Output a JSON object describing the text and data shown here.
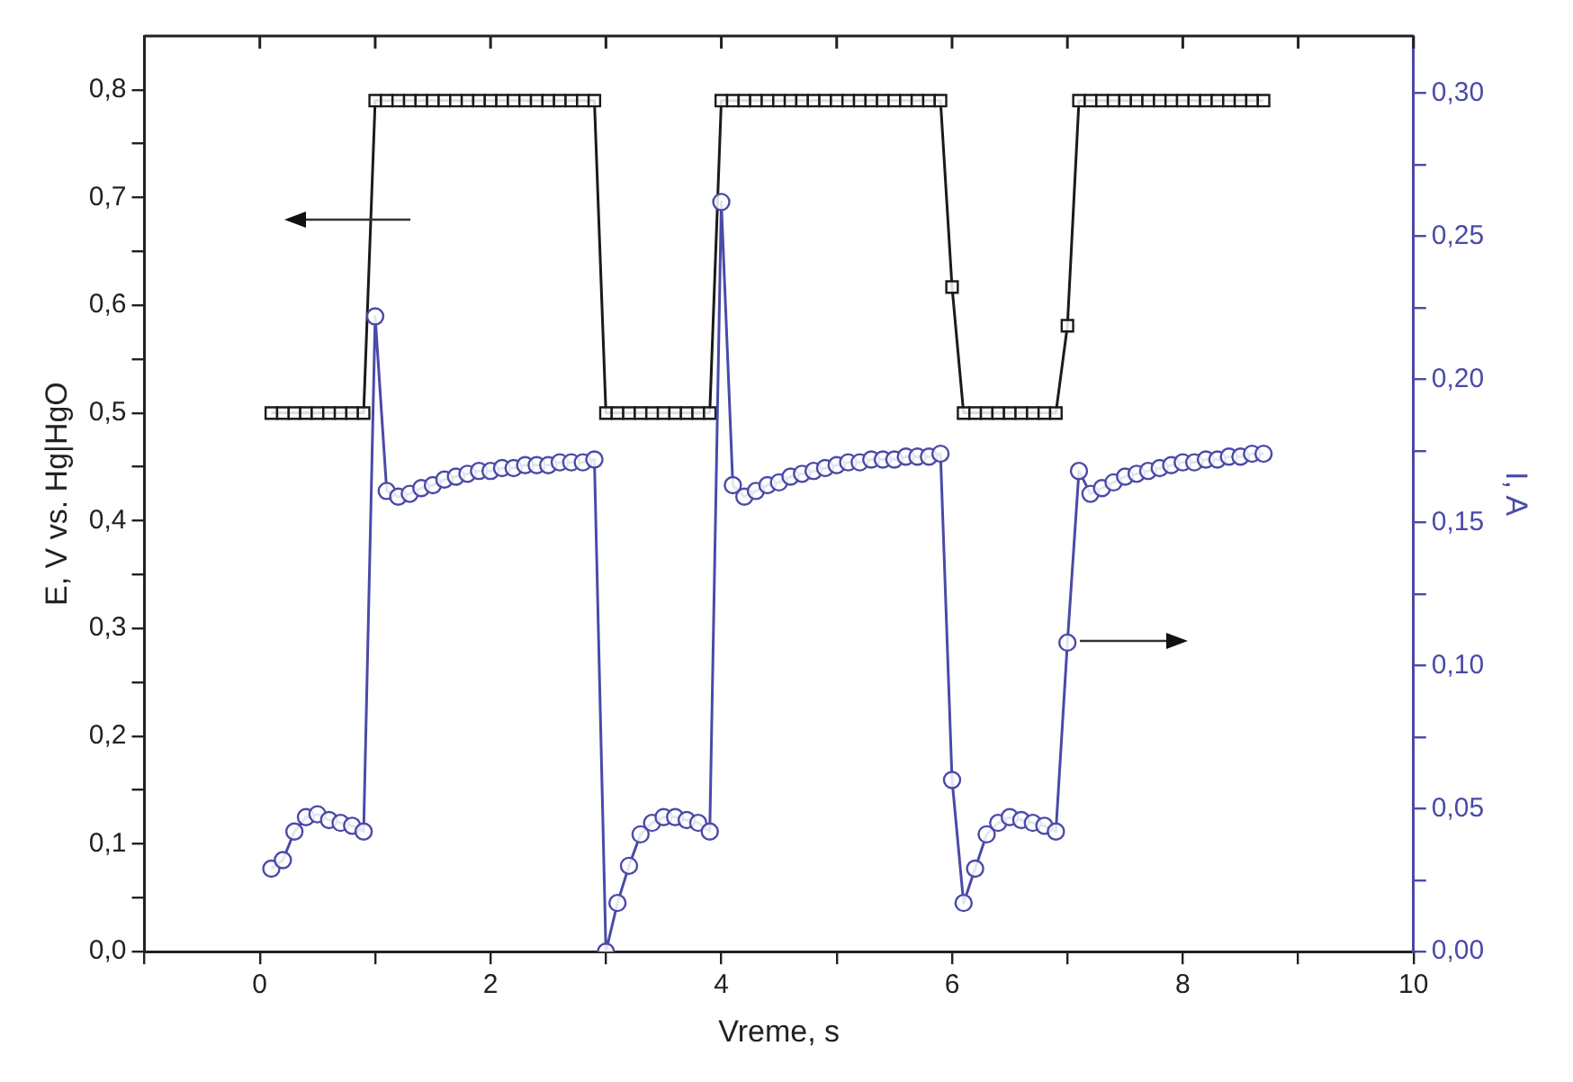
{
  "chart_data": {
    "type": "line",
    "xlabel": "Vreme, s",
    "ylabel": "E, V vs. Hg|HgO",
    "y2label": "I, A",
    "xlim": [
      -1,
      10
    ],
    "xticks": [
      {
        "value": -1,
        "label": null
      },
      0,
      {
        "value": 1,
        "label": null
      },
      2,
      {
        "value": 3,
        "label": null
      },
      4,
      {
        "value": 5,
        "label": null
      },
      6,
      {
        "value": 7,
        "label": null
      },
      8,
      {
        "value": 9,
        "label": null
      },
      10
    ],
    "ylim": [
      0,
      0.85
    ],
    "yticks": [
      {
        "value": 0,
        "label": "0,0"
      },
      {
        "value": 0.05,
        "label": null
      },
      {
        "value": 0.1,
        "label": "0,1"
      },
      {
        "value": 0.15,
        "label": null
      },
      {
        "value": 0.2,
        "label": "0,2"
      },
      {
        "value": 0.25,
        "label": null
      },
      {
        "value": 0.3,
        "label": "0,3"
      },
      {
        "value": 0.35,
        "label": null
      },
      {
        "value": 0.4,
        "label": "0,4"
      },
      {
        "value": 0.45,
        "label": null
      },
      {
        "value": 0.5,
        "label": "0,5"
      },
      {
        "value": 0.55,
        "label": null
      },
      {
        "value": 0.6,
        "label": "0,6"
      },
      {
        "value": 0.65,
        "label": null
      },
      {
        "value": 0.7,
        "label": "0,7"
      },
      {
        "value": 0.75,
        "label": null
      },
      {
        "value": 0.8,
        "label": "0,8"
      }
    ],
    "y2lim": [
      0,
      0.32
    ],
    "y2ticks": [
      {
        "value": 0,
        "label": "0,00"
      },
      {
        "value": 0.025,
        "label": null
      },
      {
        "value": 0.05,
        "label": "0,05"
      },
      {
        "value": 0.075,
        "label": null
      },
      {
        "value": 0.1,
        "label": "0,10"
      },
      {
        "value": 0.125,
        "label": null
      },
      {
        "value": 0.15,
        "label": "0,15"
      },
      {
        "value": 0.175,
        "label": null
      },
      {
        "value": 0.2,
        "label": "0,20"
      },
      {
        "value": 0.225,
        "label": null
      },
      {
        "value": 0.25,
        "label": "0,25"
      },
      {
        "value": 0.275,
        "label": null
      },
      {
        "value": 0.3,
        "label": "0,30"
      }
    ],
    "grid": false,
    "legend": false,
    "line_style": "solid",
    "series": [
      {
        "color": "#1a1a1a",
        "marker": "square",
        "x": [
          0.1,
          0.2,
          0.3,
          0.4,
          0.5,
          0.6,
          0.7,
          0.8,
          0.9,
          1.0,
          1.1,
          1.2,
          1.3,
          1.4,
          1.5,
          1.6,
          1.7,
          1.8,
          1.9,
          2.0,
          2.1,
          2.2,
          2.3,
          2.4,
          2.5,
          2.6,
          2.7,
          2.8,
          2.9,
          3.0,
          3.1,
          3.2,
          3.3,
          3.4,
          3.5,
          3.6,
          3.7,
          3.8,
          3.9,
          4.0,
          4.1,
          4.2,
          4.3,
          4.4,
          4.5,
          4.6,
          4.7,
          4.8,
          4.9,
          5.0,
          5.1,
          5.2,
          5.3,
          5.4,
          5.5,
          5.6,
          5.7,
          5.8,
          5.9,
          6.0,
          6.1,
          6.2,
          6.3,
          6.4,
          6.5,
          6.6,
          6.7,
          6.8,
          6.9,
          7.0,
          7.1,
          7.2,
          7.3,
          7.4,
          7.5,
          7.6,
          7.7,
          7.8,
          7.9,
          8.0,
          8.1,
          8.2,
          8.3,
          8.4,
          8.5,
          8.6,
          8.7
        ],
        "values": [
          0.5,
          0.5,
          0.5,
          0.5,
          0.5,
          0.5,
          0.5,
          0.5,
          0.5,
          0.79,
          0.79,
          0.79,
          0.79,
          0.79,
          0.79,
          0.79,
          0.79,
          0.79,
          0.79,
          0.79,
          0.79,
          0.79,
          0.79,
          0.79,
          0.79,
          0.79,
          0.79,
          0.79,
          0.79,
          0.5,
          0.5,
          0.5,
          0.5,
          0.5,
          0.5,
          0.5,
          0.5,
          0.5,
          0.5,
          0.79,
          0.79,
          0.79,
          0.79,
          0.79,
          0.79,
          0.79,
          0.79,
          0.79,
          0.79,
          0.79,
          0.79,
          0.79,
          0.79,
          0.79,
          0.79,
          0.79,
          0.79,
          0.79,
          0.79,
          0.617,
          0.5,
          0.5,
          0.5,
          0.5,
          0.5,
          0.5,
          0.5,
          0.5,
          0.5,
          0.581,
          0.79,
          0.79,
          0.79,
          0.79,
          0.79,
          0.79,
          0.79,
          0.79,
          0.79,
          0.79,
          0.79,
          0.79,
          0.79,
          0.79,
          0.79,
          0.79,
          0.79
        ]
      },
      {
        "color": "#4a4aa8",
        "marker": "circle",
        "axis": "y2",
        "x": [
          0.1,
          0.2,
          0.3,
          0.4,
          0.5,
          0.6,
          0.7,
          0.8,
          0.9,
          1.0,
          1.1,
          1.2,
          1.3,
          1.4,
          1.5,
          1.6,
          1.7,
          1.8,
          1.9,
          2.0,
          2.1,
          2.2,
          2.3,
          2.4,
          2.5,
          2.6,
          2.7,
          2.8,
          2.9,
          3.0,
          3.1,
          3.2,
          3.3,
          3.4,
          3.5,
          3.6,
          3.7,
          3.8,
          3.9,
          4.0,
          4.1,
          4.2,
          4.3,
          4.4,
          4.5,
          4.6,
          4.7,
          4.8,
          4.9,
          5.0,
          5.1,
          5.2,
          5.3,
          5.4,
          5.5,
          5.6,
          5.7,
          5.8,
          5.9,
          6.0,
          6.1,
          6.2,
          6.3,
          6.4,
          6.5,
          6.6,
          6.7,
          6.8,
          6.9,
          7.0,
          7.1,
          7.2,
          7.3,
          7.4,
          7.5,
          7.6,
          7.7,
          7.8,
          7.9,
          8.0,
          8.1,
          8.2,
          8.3,
          8.4,
          8.5,
          8.6,
          8.7
        ],
        "values": [
          0.029,
          0.032,
          0.042,
          0.047,
          0.048,
          0.046,
          0.045,
          0.044,
          0.042,
          0.222,
          0.161,
          0.159,
          0.16,
          0.162,
          0.163,
          0.165,
          0.166,
          0.167,
          0.168,
          0.168,
          0.169,
          0.169,
          0.17,
          0.17,
          0.17,
          0.171,
          0.171,
          0.171,
          0.172,
          0.0,
          0.017,
          0.03,
          0.041,
          0.045,
          0.047,
          0.047,
          0.046,
          0.045,
          0.042,
          0.262,
          0.163,
          0.159,
          0.161,
          0.163,
          0.164,
          0.166,
          0.167,
          0.168,
          0.169,
          0.17,
          0.171,
          0.171,
          0.172,
          0.172,
          0.172,
          0.173,
          0.173,
          0.173,
          0.174,
          0.06,
          0.017,
          0.029,
          0.041,
          0.045,
          0.047,
          0.046,
          0.045,
          0.044,
          0.042,
          0.108,
          0.168,
          0.16,
          0.162,
          0.164,
          0.166,
          0.167,
          0.168,
          0.169,
          0.17,
          0.171,
          0.171,
          0.172,
          0.172,
          0.173,
          0.173,
          0.174,
          0.174
        ]
      }
    ]
  }
}
